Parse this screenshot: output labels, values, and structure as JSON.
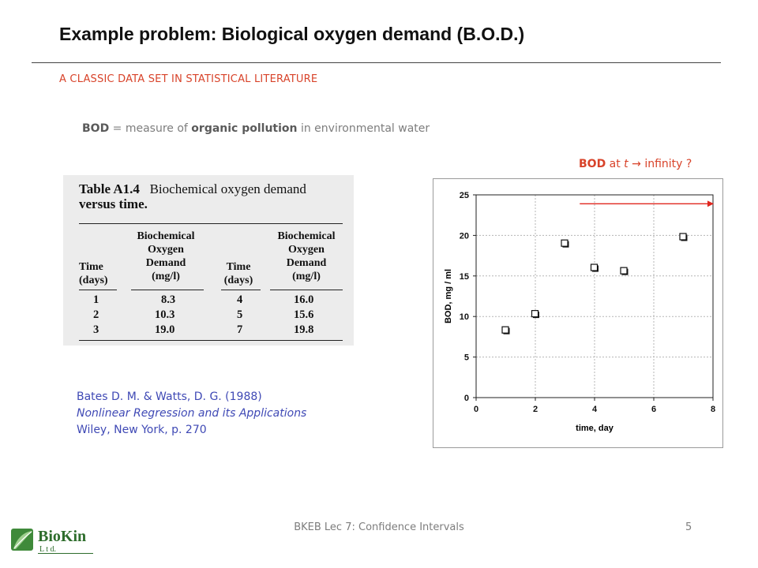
{
  "slide": {
    "title": "Example problem: Biological oxygen demand (B.O.D.)",
    "subtitle": "A CLASSIC DATA SET IN STATISTICAL LITERATURE",
    "bod_def": {
      "term": "BOD",
      "text1": " = measure of ",
      "term2": "organic pollution",
      "text2": " in environmental water"
    },
    "question": {
      "term": "BOD",
      "text1": " at ",
      "var": "t",
      "arrow": " → ",
      "text2": "infinity ?"
    },
    "table": {
      "caption_label": "Table A1.4",
      "caption_text1": "Biochemical oxygen demand",
      "caption_text2": "versus time.",
      "headers": {
        "time1": [
          "Time",
          "(days)"
        ],
        "bod1": [
          "Biochemical",
          "Oxygen",
          "Demand",
          "(mg/l)"
        ],
        "time2": [
          "Time",
          "(days)"
        ],
        "bod2": [
          "Biochemical",
          "Oxygen",
          "Demand",
          "(mg/l)"
        ]
      },
      "rows": [
        {
          "t1": "1",
          "v1": "8.3",
          "t2": "4",
          "v2": "16.0"
        },
        {
          "t1": "2",
          "v1": "10.3",
          "t2": "5",
          "v2": "15.6"
        },
        {
          "t1": "3",
          "v1": "19.0",
          "t2": "7",
          "v2": "19.8"
        }
      ]
    },
    "reference": {
      "line1": "Bates D. M. & Watts, D. G. (1988)",
      "line2": "Nonlinear Regression and its Applications",
      "line3": "Wiley, New York, p.  270"
    },
    "footer": "BKEB Lec 7: Confidence Intervals",
    "page_number": "5",
    "logo": {
      "name": "BioKin",
      "sub": "L t d."
    }
  },
  "colors": {
    "accent": "#d8432a",
    "reference": "#3f49b5",
    "gray_text": "#7d7d7d",
    "arrow": "#e0271f"
  },
  "chart_data": {
    "type": "scatter",
    "x": [
      1,
      2,
      3,
      4,
      5,
      7
    ],
    "y": [
      8.3,
      10.3,
      19.0,
      16.0,
      15.6,
      19.8
    ],
    "xlabel": "time, day",
    "ylabel": "BOD, mg / ml",
    "xlim": [
      0,
      8
    ],
    "ylim": [
      0,
      25
    ],
    "xticks": [
      0,
      2,
      4,
      6,
      8
    ],
    "yticks": [
      0,
      5,
      10,
      15,
      20,
      25
    ],
    "grid": true,
    "arrow": {
      "x_from": 3.5,
      "x_to": 8,
      "y": 23.9
    }
  }
}
